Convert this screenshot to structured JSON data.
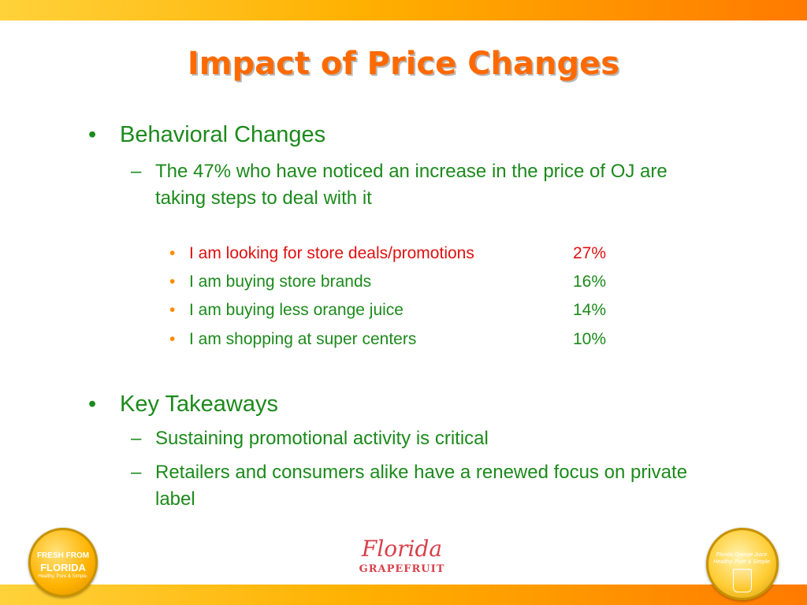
{
  "title": "Impact of Price Changes",
  "section1": {
    "bullet": "•",
    "heading": "Behavioral Changes",
    "sub_dash": "–",
    "subtext": "The 47% who have noticed an increase in the price of OJ are taking steps to deal with it",
    "items": [
      {
        "label": "I am looking for store deals/promotions",
        "value": "27%"
      },
      {
        "label": "I am buying store brands",
        "value": "16%"
      },
      {
        "label": "I am buying less orange juice",
        "value": "14%"
      },
      {
        "label": "I am shopping at super centers",
        "value": "10%"
      }
    ]
  },
  "section2": {
    "bullet": "•",
    "heading": "Key Takeaways",
    "sub_dash": "–",
    "points": [
      "Sustaining promotional activity is critical",
      "Retailers and consumers alike have a renewed focus on private label"
    ]
  },
  "item_bullet": "•",
  "footer": {
    "left_badge": {
      "line1": "FRESH FROM",
      "line2": "FLORIDA",
      "tagline": "Healthy. Pure & Simple."
    },
    "center_logo": {
      "word1": "Florida",
      "word2": "GRAPEFRUIT"
    },
    "right_badge": {
      "text": "Florida Orange Juice. Healthy. Pure & Simple."
    }
  },
  "colors": {
    "title": "#ff6a00",
    "body": "#1c8a1c",
    "highlight": "#e01010",
    "bullet_small": "#ff8a00"
  }
}
